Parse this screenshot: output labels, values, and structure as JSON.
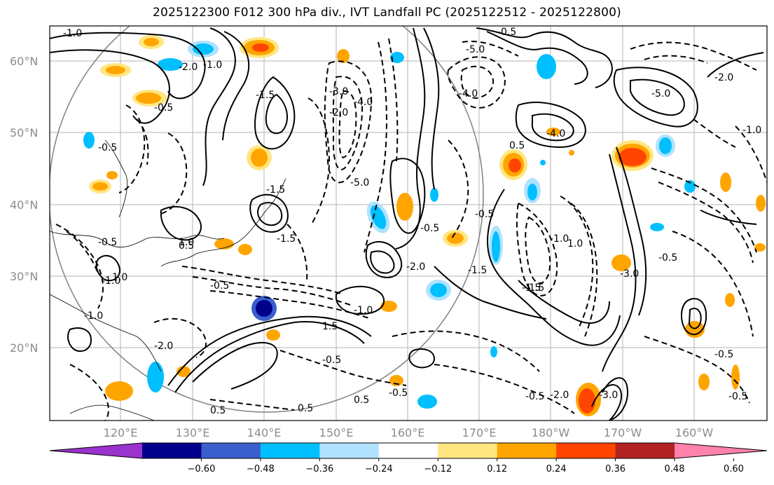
{
  "title": "2025122300 F012 300 hPa div., IVT Landfall PC (2025122512 - 2025122800)",
  "map": {
    "lat_labels": [
      "60°N",
      "50°N",
      "40°N",
      "30°N",
      "20°N"
    ],
    "lon_labels": [
      "120°E",
      "130°E",
      "140°E",
      "150°E",
      "160°E",
      "170°E",
      "180°W",
      "170°W",
      "160°W"
    ],
    "contour_labels": [
      "-1.0",
      "-2.0",
      "-1.0",
      "-1.5",
      "-0.5",
      "-3.0",
      "-4.0",
      "-5.0",
      "-2.0",
      "-1.5",
      "-0.5",
      "-4.0",
      "-5.0",
      "-0.5",
      "0.5",
      "1.5",
      "-1.0",
      "-0.5",
      "-3.0",
      "-2.0",
      "-4.0",
      "-5.0",
      "-1.0",
      "1.0",
      "-1.5",
      "-2.0",
      "-0.5",
      "-0.5",
      "-0.5",
      "0.5",
      "-1.5",
      "1.5",
      "-1.0",
      "-0.5",
      "-1.0",
      "-2.0",
      "0.5",
      "-0.5",
      "-1.0",
      "-0.5",
      "1.0",
      "-1.5",
      "-0.5",
      "0.5",
      "1.0",
      "-3.0",
      "-2.0",
      "-0.5",
      "-0.5",
      "0.5"
    ],
    "colors": {
      "grid": "#b3b3b3",
      "circle": "#808080",
      "positive_contour": "#000000",
      "negative_contour": "#000000"
    }
  },
  "colorbar": {
    "ticks": [
      "−0.60",
      "−0.48",
      "−0.36",
      "−0.24",
      "−0.12",
      "0.12",
      "0.24",
      "0.36",
      "0.48",
      "0.60"
    ],
    "colors": [
      "#9a32cd",
      "#00008b",
      "#3a5fcd",
      "#00bfff",
      "#b0e2ff",
      "#ffffff",
      "#ffe680",
      "#ffa500",
      "#ff4500",
      "#b22222",
      "#ff82ab"
    ]
  }
}
